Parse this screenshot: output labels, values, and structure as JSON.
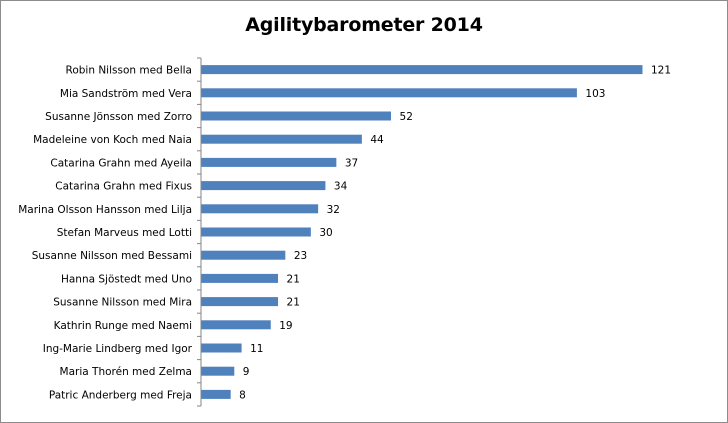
{
  "chart_data": {
    "type": "bar",
    "orientation": "horizontal",
    "title": "Agilitybarometer 2014",
    "categories": [
      "Robin Nilsson med Bella",
      "Mia Sandström med Vera",
      "Susanne Jönsson med Zorro",
      "Madeleine von Koch med Naia",
      "Catarina Grahn med Ayeila",
      "Catarina Grahn med Fixus",
      "Marina Olsson Hansson med Lilja",
      "Stefan Marveus med Lotti",
      "Susanne Nilsson med Bessami",
      "Hanna Sjöstedt med Uno",
      "Susanne Nilsson med Mira",
      "Kathrin Runge med Naemi",
      "Ing-Marie Lindberg med Igor",
      "Maria Thorén med Zelma",
      "Patric Anderberg med Freja"
    ],
    "values": [
      121,
      103,
      52,
      44,
      37,
      34,
      32,
      30,
      23,
      21,
      21,
      19,
      11,
      9,
      8
    ],
    "xlabel": "",
    "ylabel": "",
    "xlim": [
      0,
      121
    ],
    "grid": false,
    "legend": "none",
    "bar_color": "#4f81bd",
    "axis_color": "#868686"
  }
}
